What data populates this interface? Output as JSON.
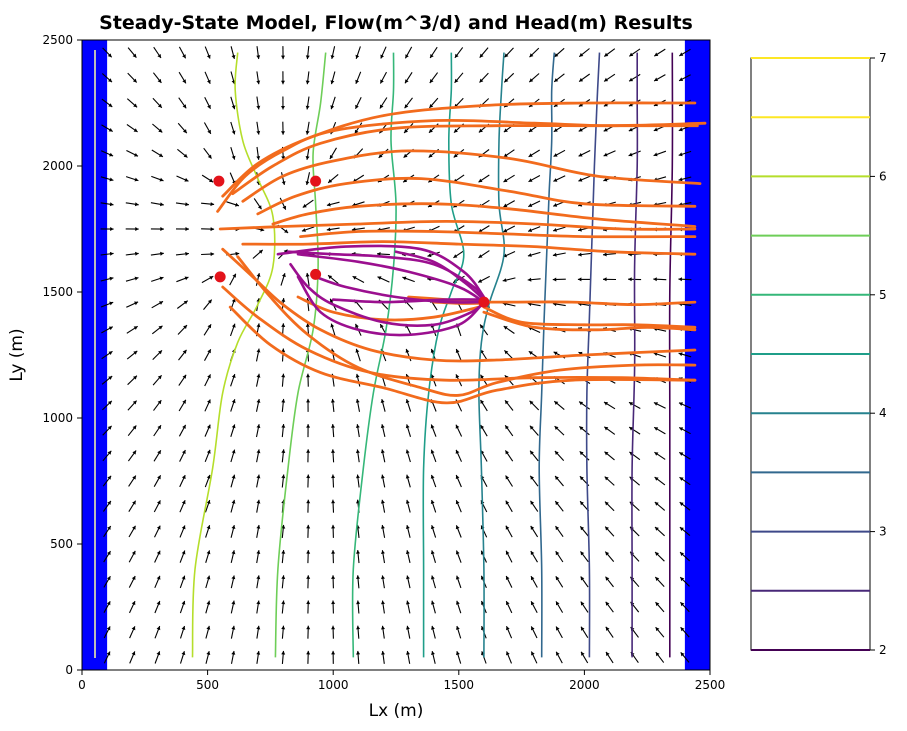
{
  "chart_data": {
    "type": "contour",
    "title": "Steady-State Model, Flow(m^3/d) and Head(m) Results",
    "xlabel": "Lx (m)",
    "ylabel": "Ly (m)",
    "xlim": [
      0,
      2500
    ],
    "ylim": [
      0,
      2500
    ],
    "xticks": [
      "0",
      "500",
      "1000",
      "1500",
      "2000",
      "2500"
    ],
    "yticks": [
      "0",
      "500",
      "1000",
      "1500",
      "2000",
      "2500"
    ],
    "grid": false,
    "colorbar": {
      "ticks": [
        "2",
        "3",
        "4",
        "5",
        "6",
        "7"
      ],
      "range": [
        2,
        7
      ],
      "levels": [
        2.0,
        2.5,
        3.0,
        3.5,
        4.0,
        4.5,
        5.0,
        5.5,
        6.0,
        6.5,
        7.0
      ],
      "level_colors": [
        "#440154",
        "#482878",
        "#3e4989",
        "#31688e",
        "#26828e",
        "#1f9e89",
        "#35b779",
        "#6ece58",
        "#b5de2b",
        "#fde725",
        "#fde725"
      ]
    },
    "boundaries": [
      {
        "name": "west constant-head boundary",
        "x_range": [
          0,
          100
        ],
        "y_range": [
          0,
          2500
        ],
        "color": "#0000ff"
      },
      {
        "name": "east constant-head boundary",
        "x_range": [
          2400,
          2500
        ],
        "y_range": [
          0,
          2500
        ],
        "color": "#0000ff"
      }
    ],
    "head_contours": [
      {
        "level": 6.5,
        "color": "#b5de2b",
        "points": [
          [
            440,
            50
          ],
          [
            450,
            400
          ],
          [
            520,
            800
          ],
          [
            560,
            1100
          ],
          [
            620,
            1300
          ],
          [
            700,
            1450
          ],
          [
            760,
            1600
          ],
          [
            760,
            1800
          ],
          [
            700,
            1950
          ],
          [
            640,
            2100
          ],
          [
            610,
            2300
          ],
          [
            620,
            2450
          ]
        ]
      },
      {
        "level": 6.0,
        "color": "#6ece58",
        "points": [
          [
            770,
            50
          ],
          [
            780,
            400
          ],
          [
            820,
            800
          ],
          [
            860,
            1100
          ],
          [
            920,
            1350
          ],
          [
            940,
            1600
          ],
          [
            930,
            1850
          ],
          [
            920,
            2050
          ],
          [
            950,
            2250
          ],
          [
            970,
            2450
          ]
        ]
      },
      {
        "level": 5.5,
        "color": "#35b779",
        "points": [
          [
            1080,
            50
          ],
          [
            1080,
            400
          ],
          [
            1120,
            800
          ],
          [
            1160,
            1100
          ],
          [
            1210,
            1350
          ],
          [
            1240,
            1600
          ],
          [
            1250,
            1850
          ],
          [
            1230,
            2100
          ],
          [
            1240,
            2300
          ],
          [
            1240,
            2450
          ]
        ]
      },
      {
        "level": 5.0,
        "color": "#1f9e89",
        "points": [
          [
            1360,
            50
          ],
          [
            1360,
            400
          ],
          [
            1360,
            800
          ],
          [
            1380,
            1100
          ],
          [
            1420,
            1350
          ],
          [
            1470,
            1500
          ],
          [
            1520,
            1650
          ],
          [
            1470,
            1850
          ],
          [
            1460,
            2100
          ],
          [
            1470,
            2300
          ],
          [
            1470,
            2450
          ]
        ]
      },
      {
        "level": 4.5,
        "color": "#26828e",
        "points": [
          [
            1600,
            50
          ],
          [
            1600,
            400
          ],
          [
            1590,
            800
          ],
          [
            1580,
            1100
          ],
          [
            1590,
            1300
          ],
          [
            1620,
            1450
          ],
          [
            1680,
            1650
          ],
          [
            1660,
            1850
          ],
          [
            1660,
            2100
          ],
          [
            1670,
            2300
          ],
          [
            1680,
            2450
          ]
        ]
      },
      {
        "level": 4.0,
        "color": "#31688e",
        "points": [
          [
            1830,
            50
          ],
          [
            1830,
            400
          ],
          [
            1820,
            800
          ],
          [
            1830,
            1100
          ],
          [
            1840,
            1400
          ],
          [
            1850,
            1650
          ],
          [
            1860,
            1900
          ],
          [
            1870,
            2100
          ],
          [
            1870,
            2300
          ],
          [
            1880,
            2450
          ]
        ]
      },
      {
        "level": 3.5,
        "color": "#3e4989",
        "points": [
          [
            2020,
            50
          ],
          [
            2020,
            400
          ],
          [
            2010,
            800
          ],
          [
            2010,
            1100
          ],
          [
            2020,
            1400
          ],
          [
            2030,
            1700
          ],
          [
            2040,
            2000
          ],
          [
            2050,
            2250
          ],
          [
            2060,
            2450
          ]
        ]
      },
      {
        "level": 3.0,
        "color": "#482878",
        "points": [
          [
            2190,
            50
          ],
          [
            2190,
            400
          ],
          [
            2190,
            800
          ],
          [
            2200,
            1200
          ],
          [
            2200,
            1600
          ],
          [
            2210,
            2000
          ],
          [
            2210,
            2250
          ],
          [
            2210,
            2450
          ]
        ]
      },
      {
        "level": 2.5,
        "color": "#440154",
        "points": [
          [
            2340,
            50
          ],
          [
            2340,
            500
          ],
          [
            2340,
            1000
          ],
          [
            2340,
            1500
          ],
          [
            2350,
            2000
          ],
          [
            2350,
            2450
          ]
        ]
      }
    ],
    "wells": [
      {
        "name": "well-1",
        "x": 545,
        "y": 1940
      },
      {
        "name": "well-2",
        "x": 930,
        "y": 1940
      },
      {
        "name": "well-3",
        "x": 550,
        "y": 1560
      },
      {
        "name": "well-4",
        "x": 930,
        "y": 1570
      },
      {
        "name": "well-5",
        "x": 1600,
        "y": 1460
      }
    ],
    "pathlines_orange": [
      [
        [
          540,
          1820
        ],
        [
          650,
          1960
        ],
        [
          800,
          2060
        ],
        [
          1000,
          2140
        ],
        [
          1400,
          2180
        ],
        [
          1800,
          2170
        ],
        [
          2100,
          2160
        ],
        [
          2480,
          2170
        ]
      ],
      [
        [
          560,
          1880
        ],
        [
          700,
          2010
        ],
        [
          900,
          2110
        ],
        [
          1200,
          2200
        ],
        [
          1600,
          2240
        ],
        [
          2000,
          2250
        ],
        [
          2300,
          2250
        ],
        [
          2440,
          2250
        ]
      ],
      [
        [
          600,
          1890
        ],
        [
          760,
          2000
        ],
        [
          950,
          2090
        ],
        [
          1250,
          2150
        ],
        [
          1650,
          2160
        ],
        [
          2050,
          2160
        ],
        [
          2450,
          2160
        ]
      ],
      [
        [
          640,
          1860
        ],
        [
          800,
          1960
        ],
        [
          1000,
          2020
        ],
        [
          1300,
          2060
        ],
        [
          1700,
          2030
        ],
        [
          2050,
          1960
        ],
        [
          2460,
          1930
        ]
      ],
      [
        [
          700,
          1810
        ],
        [
          850,
          1880
        ],
        [
          1050,
          1930
        ],
        [
          1350,
          1950
        ],
        [
          1700,
          1900
        ],
        [
          2000,
          1850
        ],
        [
          2440,
          1840
        ]
      ],
      [
        [
          760,
          1770
        ],
        [
          900,
          1810
        ],
        [
          1100,
          1840
        ],
        [
          1400,
          1850
        ],
        [
          1700,
          1830
        ],
        [
          2050,
          1790
        ],
        [
          2440,
          1760
        ]
      ],
      [
        [
          550,
          1750
        ],
        [
          800,
          1760
        ],
        [
          1100,
          1770
        ],
        [
          1450,
          1780
        ],
        [
          1800,
          1770
        ],
        [
          2150,
          1750
        ],
        [
          2440,
          1750
        ]
      ],
      [
        [
          870,
          1720
        ],
        [
          1100,
          1740
        ],
        [
          1400,
          1740
        ],
        [
          1700,
          1730
        ],
        [
          2000,
          1720
        ],
        [
          2440,
          1720
        ]
      ],
      [
        [
          640,
          1690
        ],
        [
          900,
          1690
        ],
        [
          1200,
          1700
        ],
        [
          1500,
          1690
        ],
        [
          1800,
          1680
        ],
        [
          2100,
          1660
        ],
        [
          2440,
          1650
        ]
      ],
      [
        [
          1600,
          1460
        ],
        [
          1720,
          1460
        ],
        [
          1950,
          1460
        ],
        [
          2200,
          1450
        ],
        [
          2440,
          1460
        ]
      ],
      [
        [
          560,
          1670
        ],
        [
          680,
          1560
        ],
        [
          800,
          1450
        ],
        [
          950,
          1350
        ],
        [
          1150,
          1270
        ],
        [
          1400,
          1230
        ],
        [
          1650,
          1230
        ],
        [
          2000,
          1250
        ],
        [
          2440,
          1270
        ]
      ],
      [
        [
          560,
          1520
        ],
        [
          700,
          1400
        ],
        [
          900,
          1270
        ],
        [
          1150,
          1180
        ],
        [
          1450,
          1150
        ],
        [
          1800,
          1160
        ],
        [
          2150,
          1160
        ],
        [
          2440,
          1150
        ]
      ],
      [
        [
          620,
          1640
        ],
        [
          750,
          1480
        ],
        [
          900,
          1330
        ],
        [
          1100,
          1200
        ],
        [
          1350,
          1120
        ],
        [
          1500,
          1090
        ],
        [
          1650,
          1140
        ],
        [
          1900,
          1190
        ],
        [
          2200,
          1210
        ],
        [
          2440,
          1210
        ]
      ],
      [
        [
          590,
          1440
        ],
        [
          750,
          1290
        ],
        [
          950,
          1180
        ],
        [
          1200,
          1120
        ],
        [
          1450,
          1060
        ],
        [
          1650,
          1110
        ],
        [
          1950,
          1150
        ],
        [
          2440,
          1150
        ]
      ],
      [
        [
          1600,
          1440
        ],
        [
          1750,
          1380
        ],
        [
          2000,
          1370
        ],
        [
          2200,
          1370
        ],
        [
          2440,
          1360
        ]
      ],
      [
        [
          1600,
          1420
        ],
        [
          1800,
          1360
        ],
        [
          2050,
          1350
        ],
        [
          2250,
          1360
        ],
        [
          2440,
          1350
        ]
      ],
      [
        [
          860,
          1480
        ],
        [
          1000,
          1420
        ],
        [
          1200,
          1390
        ],
        [
          1400,
          1400
        ],
        [
          1580,
          1440
        ]
      ],
      [
        [
          1300,
          1480
        ],
        [
          1450,
          1470
        ],
        [
          1590,
          1460
        ]
      ],
      [
        [
          1400,
          1460
        ],
        [
          1500,
          1455
        ],
        [
          1590,
          1455
        ]
      ]
    ],
    "pathlines_purple": [
      [
        [
          820,
          1660
        ],
        [
          1000,
          1650
        ],
        [
          1200,
          1640
        ],
        [
          1400,
          1610
        ],
        [
          1560,
          1520
        ],
        [
          1600,
          1460
        ]
      ],
      [
        [
          860,
          1650
        ],
        [
          1100,
          1620
        ],
        [
          1300,
          1580
        ],
        [
          1500,
          1520
        ],
        [
          1600,
          1460
        ]
      ],
      [
        [
          930,
          1560
        ],
        [
          1050,
          1520
        ],
        [
          1250,
          1480
        ],
        [
          1450,
          1460
        ],
        [
          1600,
          1460
        ]
      ],
      [
        [
          830,
          1610
        ],
        [
          900,
          1520
        ],
        [
          1000,
          1450
        ],
        [
          1200,
          1380
        ],
        [
          1400,
          1370
        ],
        [
          1550,
          1420
        ],
        [
          1600,
          1460
        ]
      ],
      [
        [
          860,
          1560
        ],
        [
          950,
          1420
        ],
        [
          1100,
          1350
        ],
        [
          1300,
          1330
        ],
        [
          1500,
          1370
        ],
        [
          1600,
          1460
        ]
      ],
      [
        [
          1000,
          1470
        ],
        [
          1200,
          1460
        ],
        [
          1450,
          1470
        ],
        [
          1600,
          1470
        ]
      ],
      [
        [
          1250,
          1660
        ],
        [
          1400,
          1620
        ],
        [
          1520,
          1540
        ],
        [
          1600,
          1470
        ]
      ],
      [
        [
          780,
          1650
        ],
        [
          1050,
          1680
        ],
        [
          1350,
          1670
        ],
        [
          1520,
          1580
        ],
        [
          1600,
          1480
        ]
      ]
    ],
    "arrow_grid": {
      "x_start": 100,
      "x_step": 100,
      "x_end": 2400,
      "y_start": 50,
      "y_step": 100,
      "y_end": 2450
    }
  }
}
